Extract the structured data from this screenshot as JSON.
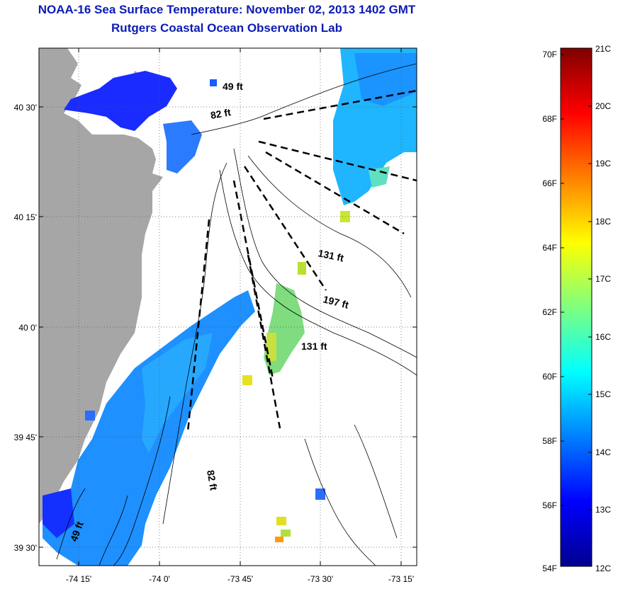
{
  "header": {
    "title": "NOAA-16 Sea Surface Temperature:  November 02, 2013 1402 GMT",
    "subtitle": "Rutgers Coastal Ocean Observation Lab"
  },
  "map": {
    "lat_labels": [
      "40 30'",
      "40 15'",
      "40 0'",
      "39 45'",
      "39 30'"
    ],
    "lon_labels": [
      "-74 15'",
      "-74 0'",
      "-73 45'",
      "-73 30'",
      "-73 15'"
    ],
    "depth_labels": [
      "49 ft",
      "82 ft",
      "131 ft",
      "197 ft",
      "131 ft",
      "82 ft",
      "49 ft"
    ],
    "colors": {
      "land": "#a6a6a6",
      "water_masked": "#ffffff"
    }
  },
  "colorbar": {
    "f_labels": [
      "70F",
      "68F",
      "66F",
      "64F",
      "62F",
      "60F",
      "58F",
      "56F",
      "54F"
    ],
    "c_labels": [
      "21C",
      "20C",
      "19C",
      "18C",
      "17C",
      "16C",
      "15C",
      "14C",
      "13C",
      "12C"
    ],
    "f_range": [
      54,
      70
    ],
    "c_range": [
      12,
      21
    ]
  }
}
